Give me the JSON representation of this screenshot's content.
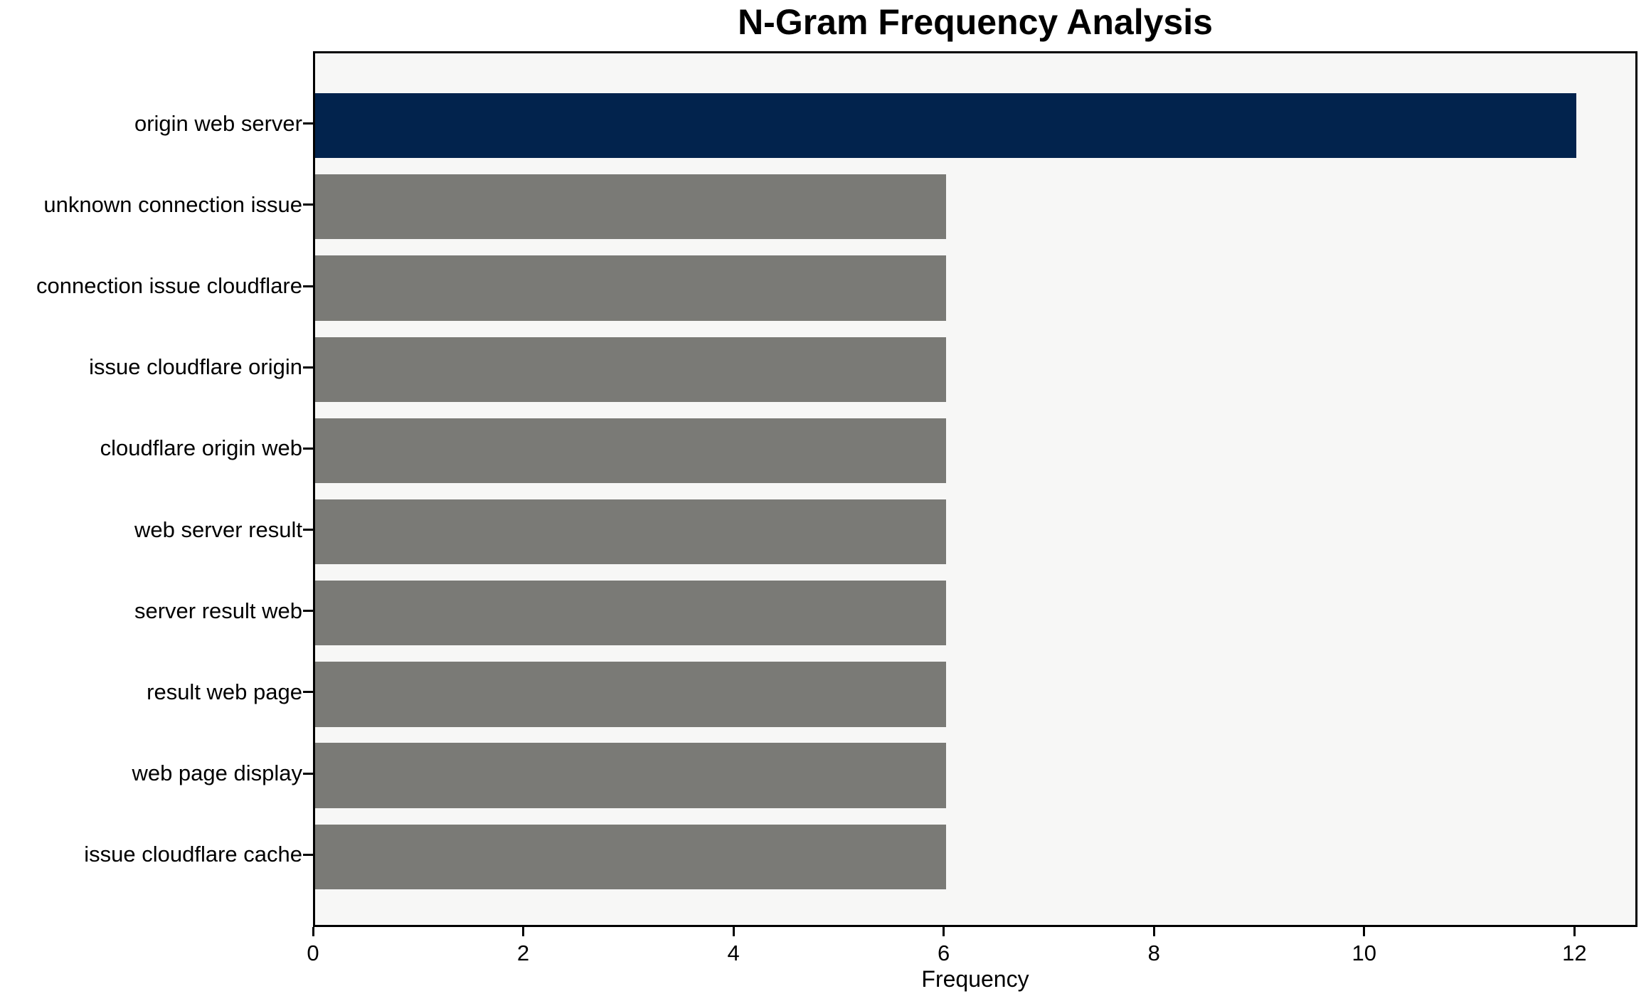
{
  "chart_data": {
    "type": "bar",
    "orientation": "horizontal",
    "title": "N-Gram Frequency Analysis",
    "xlabel": "Frequency",
    "ylabel": "",
    "categories": [
      "origin web server",
      "unknown connection issue",
      "connection issue cloudflare",
      "issue cloudflare origin",
      "cloudflare origin web",
      "web server result",
      "server result web",
      "result web page",
      "web page display",
      "issue cloudflare cache"
    ],
    "values": [
      12,
      6,
      6,
      6,
      6,
      6,
      6,
      6,
      6,
      6
    ],
    "xticks": [
      0,
      2,
      4,
      6,
      8,
      10,
      12
    ],
    "xlim": [
      0,
      12.6
    ],
    "ylim_pad_units": 0.89,
    "bar_height_units": 0.8,
    "grid": false,
    "legend_position": "none",
    "highlight_index": 0,
    "colors": {
      "highlight_bar": "#02234D",
      "default_bar": "#7A7A76",
      "plot_background": "#F7F7F6",
      "figure_background": "#FFFFFF",
      "spine": "#000000",
      "text": "#000000"
    }
  }
}
